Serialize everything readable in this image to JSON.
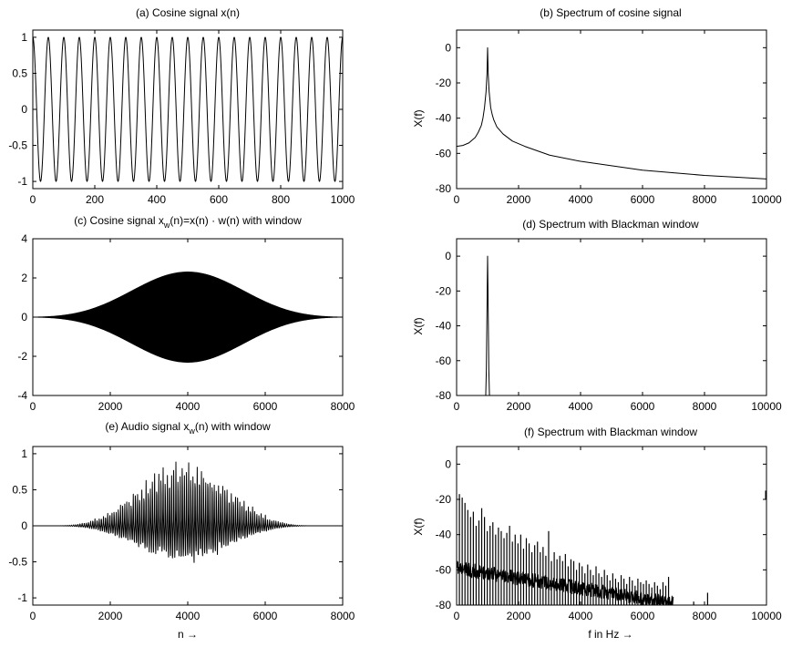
{
  "chart_data": [
    {
      "id": "a",
      "type": "line",
      "title": "(a) Cosine signal x(n)",
      "xlabel": "",
      "ylabel": "",
      "xlim": [
        0,
        1000
      ],
      "ylim": [
        -1.1,
        1.1
      ],
      "xticks": [
        0,
        200,
        400,
        600,
        800,
        1000
      ],
      "yticks": [
        -1,
        -0.5,
        0,
        0.5,
        1
      ],
      "grid": false,
      "signal": {
        "kind": "cosine",
        "cycles_in_view": 20,
        "amplitude": 1
      }
    },
    {
      "id": "b",
      "type": "line",
      "title": "(b) Spectrum of cosine signal",
      "xlabel": "",
      "ylabel": "X(f)",
      "xlim": [
        0,
        10000
      ],
      "ylim": [
        -80,
        10
      ],
      "xticks": [
        0,
        2000,
        4000,
        6000,
        8000,
        10000
      ],
      "yticks": [
        -80,
        -60,
        -40,
        -20,
        0
      ],
      "grid": false,
      "series": [
        {
          "x": [
            0,
            200,
            400,
            600,
            700,
            800,
            850,
            900,
            950,
            980,
            1000,
            1020,
            1050,
            1100,
            1150,
            1200,
            1300,
            1500,
            1800,
            2200,
            3000,
            4000,
            5000,
            6000,
            7000,
            8000,
            9000,
            10000
          ],
          "y": [
            -56,
            -55.5,
            -54,
            -51,
            -48,
            -44,
            -40,
            -34,
            -25,
            -15,
            0,
            -15,
            -25,
            -34,
            -38,
            -41,
            -45,
            -49,
            -53,
            -56,
            -61,
            -64.5,
            -67,
            -69.5,
            -71,
            -72.5,
            -73.5,
            -74.5
          ]
        }
      ]
    },
    {
      "id": "c",
      "type": "line",
      "title_main": "(c) Cosine signal x",
      "title_sub": "w",
      "title_rest": "(n)=x(n) · w(n) with window",
      "xlabel": "",
      "ylabel": "",
      "xlim": [
        0,
        8000
      ],
      "ylim": [
        -4,
        4
      ],
      "xticks": [
        0,
        2000,
        4000,
        6000,
        8000
      ],
      "yticks": [
        -4,
        -2,
        0,
        2,
        4
      ],
      "grid": false,
      "envelope": {
        "kind": "blackman",
        "peak": 2.3,
        "center": 4000
      }
    },
    {
      "id": "d",
      "type": "line",
      "title": "(d) Spectrum with Blackman window",
      "xlabel": "",
      "ylabel": "X(f)",
      "xlim": [
        0,
        10000
      ],
      "ylim": [
        -80,
        10
      ],
      "xticks": [
        0,
        2000,
        4000,
        6000,
        8000,
        10000
      ],
      "yticks": [
        -80,
        -60,
        -40,
        -20,
        0
      ],
      "grid": false,
      "series": [
        {
          "x": [
            940,
            960,
            975,
            990,
            1000,
            1010,
            1025,
            1040,
            1060
          ],
          "y": [
            -80,
            -65,
            -40,
            -15,
            0,
            -15,
            -40,
            -65,
            -80
          ]
        }
      ]
    },
    {
      "id": "e",
      "type": "line",
      "title_main": "(e) Audio signal x",
      "title_sub": "w",
      "title_rest": "(n) with window",
      "xlabel": "n →",
      "ylabel": "",
      "xlim": [
        0,
        8000
      ],
      "ylim": [
        -1.1,
        1.1
      ],
      "xticks": [
        0,
        2000,
        4000,
        6000,
        8000
      ],
      "yticks": [
        -1,
        -0.5,
        0,
        0.5,
        1
      ],
      "grid": false,
      "envelope": {
        "kind": "blackman",
        "peak": 0.9,
        "start": 600,
        "end": 7200,
        "center": 3900
      }
    },
    {
      "id": "f",
      "type": "line",
      "title": "(f) Spectrum with Blackman window",
      "xlabel": "f in Hz →",
      "ylabel": "X(f)",
      "xlim": [
        0,
        10000
      ],
      "ylim": [
        -80,
        10
      ],
      "xticks": [
        0,
        2000,
        4000,
        6000,
        8000,
        10000
      ],
      "yticks": [
        -80,
        -60,
        -40,
        -20,
        0
      ],
      "grid": false,
      "harmonics": {
        "f": [
          90,
          180,
          270,
          360,
          450,
          540,
          630,
          720,
          810,
          900,
          990,
          1080,
          1170,
          1260,
          1350,
          1440,
          1530,
          1620,
          1710,
          1800,
          1890,
          1980,
          2070,
          2160,
          2250,
          2340,
          2430,
          2520,
          2610,
          2700,
          2790,
          2880,
          2970,
          3060,
          3150,
          3240,
          3330,
          3420,
          3510,
          3600,
          3690,
          3780,
          3870,
          3960,
          4050,
          4140,
          4230,
          4320,
          4410,
          4500,
          4590,
          4680,
          4770,
          4860,
          4950,
          5040,
          5130,
          5220,
          5310,
          5400,
          5490,
          5580,
          5670,
          5760,
          5850,
          5940,
          6030,
          6120,
          6210,
          6300,
          6390,
          6480,
          6570,
          6660,
          6750,
          6840,
          7650,
          8100
        ],
        "peak": [
          -17,
          -19,
          -22,
          -26,
          -30,
          -27,
          -35,
          -32,
          -25,
          -30,
          -38,
          -35,
          -33,
          -40,
          -36,
          -38,
          -42,
          -39,
          -35,
          -44,
          -40,
          -45,
          -40,
          -48,
          -42,
          -45,
          -50,
          -46,
          -44,
          -50,
          -47,
          -52,
          -38,
          -55,
          -50,
          -54,
          -52,
          -55,
          -51,
          -58,
          -54,
          -55,
          -60,
          -56,
          -58,
          -62,
          -57,
          -60,
          -63,
          -58,
          -62,
          -64,
          -60,
          -63,
          -66,
          -62,
          -65,
          -67,
          -63,
          -65,
          -68,
          -64,
          -66,
          -69,
          -65,
          -67,
          -68,
          -66,
          -68,
          -70,
          -67,
          -69,
          -71,
          -67,
          -69,
          -64,
          -78,
          -73
        ]
      }
    }
  ]
}
